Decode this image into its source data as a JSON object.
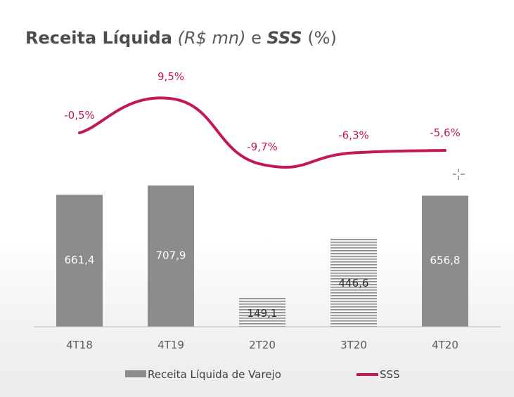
{
  "title": {
    "main": "Receita Líquida",
    "unit": "R$ mn",
    "conj": "e",
    "second": "SSS",
    "second_unit": "(%)"
  },
  "colors": {
    "bar": "#8c8c8c",
    "bar_hatched": "#7a7a7a",
    "line": "#c2185b",
    "text": "#595959"
  },
  "chart_data": {
    "type": "bar",
    "categories": [
      "4T18",
      "4T19",
      "2T20",
      "3T20",
      "4T20"
    ],
    "series": [
      {
        "name": "Receita Líquida de Varejo",
        "type": "bar",
        "values": [
          661.4,
          707.9,
          149.1,
          446.6,
          656.8
        ],
        "labels": [
          "661,4",
          "707,9",
          "149,1",
          "446,6",
          "656,8"
        ],
        "hatched": [
          false,
          false,
          true,
          true,
          false
        ]
      },
      {
        "name": "SSS",
        "type": "line",
        "values": [
          -0.5,
          9.5,
          -9.7,
          -6.3,
          -5.6
        ],
        "labels": [
          "-0,5%",
          "9,5%",
          "-9,7%",
          "-6,3%",
          "-5,6%"
        ]
      }
    ],
    "ylim": [
      0,
      750
    ],
    "sss_ylim": [
      -15,
      12
    ],
    "grid": false,
    "legend_position": "bottom"
  }
}
